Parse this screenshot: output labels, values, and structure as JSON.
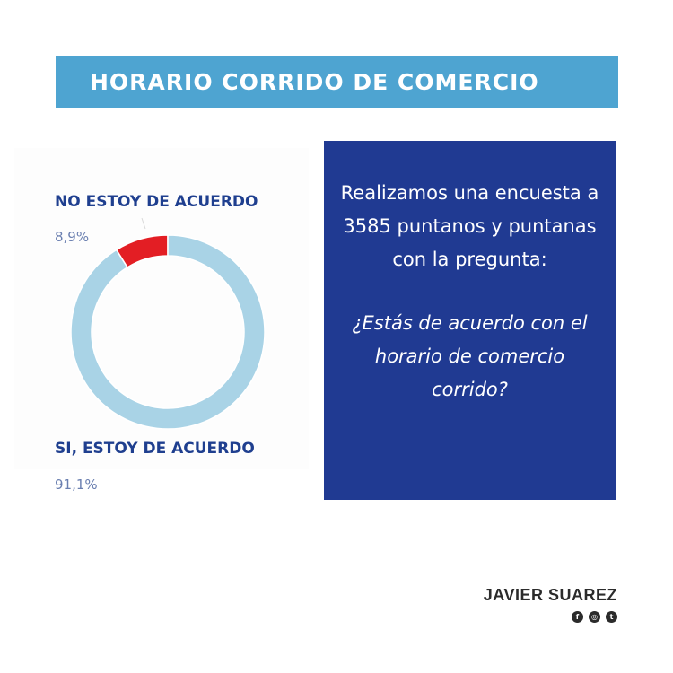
{
  "title": "HORARIO CORRIDO DE COMERCIO",
  "chart_data": {
    "type": "pie",
    "variant": "donut",
    "categories": [
      "NO ESTOY DE ACUERDO",
      "SI, ESTOY DE ACUERDO"
    ],
    "values": [
      8.9,
      91.1
    ],
    "value_labels": [
      "8,9%",
      "91,1%"
    ],
    "colors": [
      "#e31e24",
      "#a9d3e6"
    ]
  },
  "question": {
    "intro": "Realizamos una encuesta a 3585 puntanos y puntanas con la pregunta:",
    "text": "¿Estás de acuerdo con el horario de comercio corrido?"
  },
  "footer": {
    "name": "JAVIER SUAREZ",
    "socials": [
      {
        "icon": "facebook-icon",
        "glyph": "f"
      },
      {
        "icon": "instagram-icon",
        "glyph": "◎"
      },
      {
        "icon": "twitter-icon",
        "glyph": "t"
      }
    ]
  }
}
